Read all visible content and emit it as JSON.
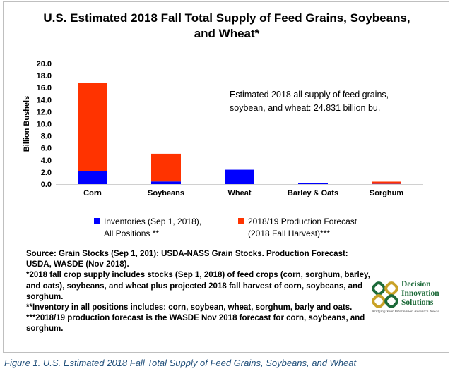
{
  "chart_data": {
    "type": "bar",
    "stacked": true,
    "title_lines": [
      "U.S. Estimated 2018 Fall Total Supply of Feed Grains, Soybeans,",
      "and Wheat*"
    ],
    "ylabel": "Billion Bushels",
    "xlabel": "",
    "ylim": [
      0,
      20
    ],
    "yticks": [
      "0.0",
      "2.0",
      "4.0",
      "6.0",
      "8.0",
      "10.0",
      "12.0",
      "14.0",
      "16.0",
      "18.0",
      "20.0"
    ],
    "categories": [
      "Corn",
      "Soybeans",
      "Wheat",
      "Barley & Oats",
      "Sorghum"
    ],
    "series": [
      {
        "name_lines": [
          "Inventories (Sep 1, 2018),",
          "All Positions **"
        ],
        "color": "#0000ff",
        "values": [
          2.14,
          0.44,
          2.39,
          0.21,
          0.04
        ]
      },
      {
        "name_lines": [
          "2018/19 Production Forecast",
          "(2018 Fall Harvest)***"
        ],
        "color": "#ff3300",
        "values": [
          14.63,
          4.6,
          0.0,
          0.0,
          0.37
        ]
      }
    ],
    "annotation_lines": [
      "Estimated 2018 all supply of feed grains,",
      "soybean, and wheat: 24.831 billion bu."
    ],
    "legend_position": "bottom",
    "grid": false
  },
  "notes": [
    "Source: Grain Stocks (Sep 1, 201): USDA-NASS Grain Stocks.  Production Forecast: USDA, WASDE (Nov 2018).",
    "*2018 fall crop supply includes stocks (Sep 1, 2018) of feed crops (corn, sorghum, barley, and oats), soybeans, and wheat plus projected 2018 fall harvest of corn, soybeans, and sorghum.",
    "**Inventory in all positions includes: corn, soybean, wheat, sorghum, barly and oats.",
    "***2018/19 production forecast is the WASDE Nov 2018 forecast for corn, soybeans, and sorghum."
  ],
  "logo": {
    "name_lines": [
      "Decision",
      "Innovation",
      "Solutions"
    ],
    "tagline": "Bridging Your Information Research Needs",
    "colors": {
      "green": "#1e6b3a",
      "gold": "#c9a227"
    }
  },
  "caption": "Figure 1. U.S. Estimated 2018 Fall Total Supply of Feed Grains, Soybeans, and Wheat"
}
